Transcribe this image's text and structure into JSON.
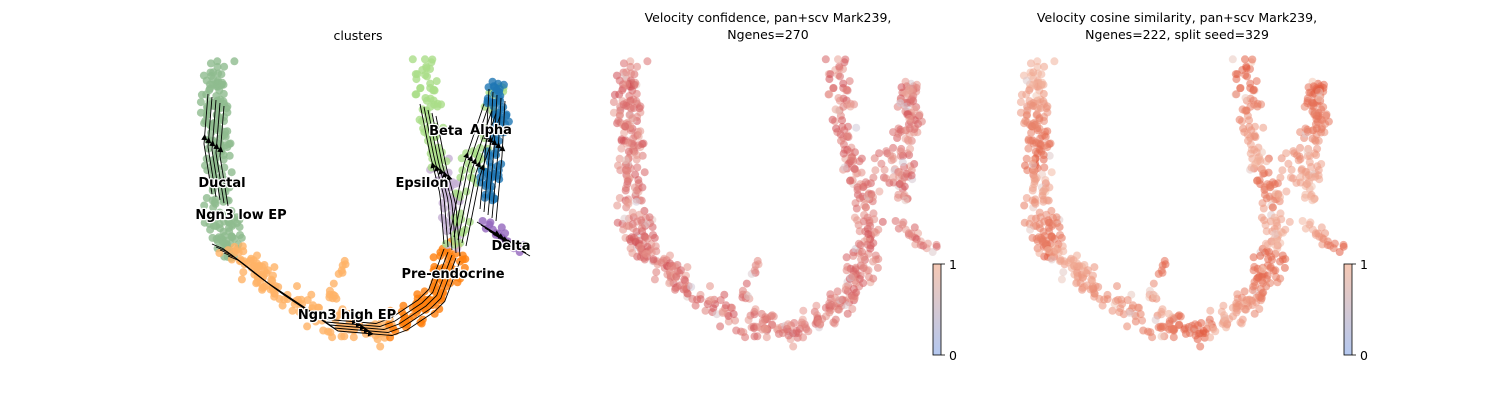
{
  "chart_data": [
    {
      "type": "scatter",
      "title": "clusters",
      "clusters": [
        {
          "name": "Ductal",
          "color": "#8fbc8f"
        },
        {
          "name": "Ngn3 low EP",
          "color": "#8fbc8f"
        },
        {
          "name": "Ngn3 high EP",
          "color": "#ffb366"
        },
        {
          "name": "Pre-endocrine",
          "color": "#ff7f0e"
        },
        {
          "name": "Beta",
          "color": "#aadd88"
        },
        {
          "name": "Alpha",
          "color": "#1f77b4"
        },
        {
          "name": "Epsilon",
          "color": "#c5b0d5"
        },
        {
          "name": "Delta",
          "color": "#9467bd"
        }
      ],
      "overlay": "velocity streamlines"
    },
    {
      "type": "scatter",
      "title": "Velocity confidence, pan+scv Mark239,\nNgenes=270",
      "colorbar": {
        "min": "0",
        "max": "1"
      },
      "colormap": [
        "#b4c8f0",
        "#f5c8b4",
        "#c0182a"
      ]
    },
    {
      "type": "scatter",
      "title": "Velocity cosine similarity, pan+scv Mark239,\nNgenes=222, split seed=329",
      "colorbar": {
        "min": "0",
        "max": "1"
      },
      "colormap": [
        "#b4c8f0",
        "#f5c8b4",
        "#e0553a"
      ]
    }
  ]
}
